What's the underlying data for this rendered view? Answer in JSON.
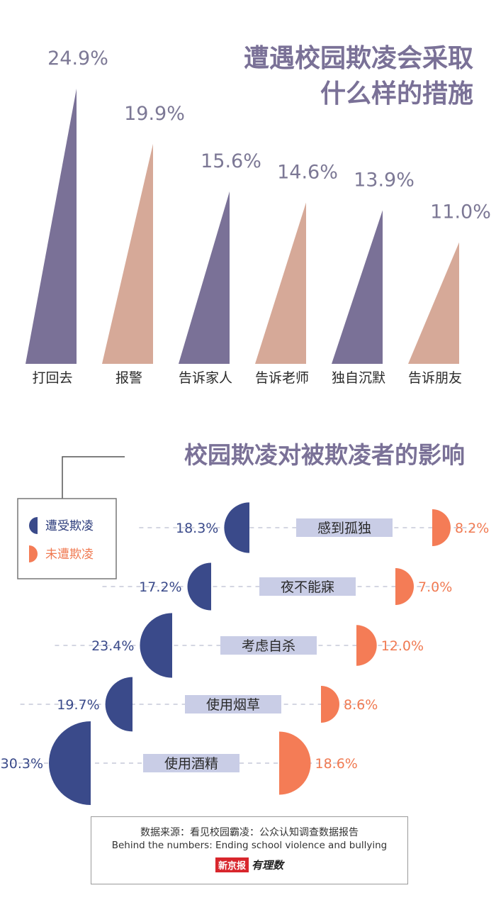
{
  "colors": {
    "purple": "#7a7197",
    "peach": "#d6a998",
    "navy": "#3a4a8a",
    "orange": "#f47c56",
    "tag_bg": "#c9cde6",
    "dash": "#c5c8d8"
  },
  "chart_data": [
    {
      "type": "bar",
      "title": [
        "遭遇校园欺凌会采取",
        "什么样的措施"
      ],
      "categories": [
        "打回去",
        "报警",
        "告诉家人",
        "告诉老师",
        "独自沉默",
        "告诉朋友"
      ],
      "values": [
        24.9,
        19.9,
        15.6,
        14.6,
        13.9,
        11.0
      ],
      "value_labels": [
        "24.9%",
        "19.9%",
        "15.6%",
        "14.6%",
        "13.9%",
        "11.0%"
      ],
      "ylim": [
        0,
        26
      ],
      "unit": "%"
    },
    {
      "type": "bar",
      "title": "校园欺凌对被欺凌者的影响",
      "categories": [
        "感到孤独",
        "夜不能寐",
        "考虑自杀",
        "使用烟草",
        "使用酒精"
      ],
      "series": [
        {
          "name": "遭受欺凌",
          "values": [
            18.3,
            17.2,
            23.4,
            19.7,
            30.3
          ],
          "labels": [
            "18.3%",
            "17.2%",
            "23.4%",
            "19.7%",
            "30.3%"
          ]
        },
        {
          "name": "未遭欺凌",
          "values": [
            8.2,
            7.0,
            12.0,
            8.6,
            18.6
          ],
          "labels": [
            "8.2%",
            "7.0%",
            "12.0%",
            "8.6%",
            "18.6%"
          ]
        }
      ],
      "legend": [
        "遭受欺凌",
        "未遭欺凌"
      ],
      "unit": "%"
    }
  ],
  "source": {
    "line1": "数据来源：看见校园霸凌：公众认知调查数据报告",
    "line2": "Behind the numbers: Ending school violence and bullying",
    "logo_left": "新京报",
    "logo_right": "有理数"
  }
}
